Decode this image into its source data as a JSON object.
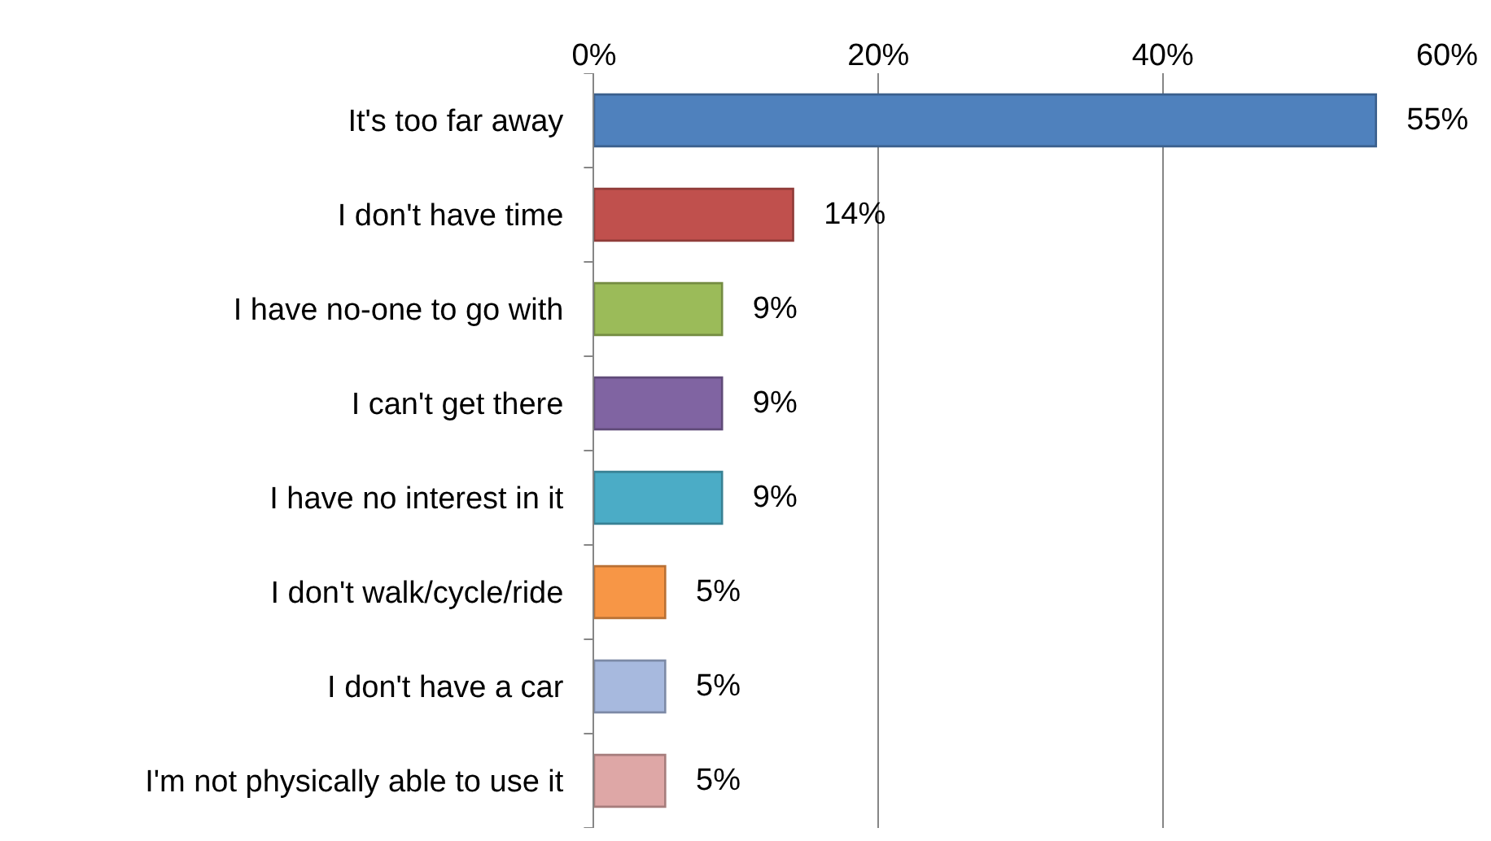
{
  "chart_data": {
    "type": "bar",
    "orientation": "horizontal",
    "categories": [
      "It's too far away",
      "I don't have time",
      "I have no-one to go with",
      "I can't get there",
      "I have no interest in it",
      "I don't walk/cycle/ride",
      "I don't have a car",
      "I'm not physically able to use it"
    ],
    "values": [
      55,
      14,
      9,
      9,
      9,
      5,
      5,
      5
    ],
    "colors": [
      "#4f81bd",
      "#c0504d",
      "#9bbb59",
      "#8064a2",
      "#4bacc6",
      "#f79646",
      "#a7b9de",
      "#dea7a6"
    ],
    "value_labels": [
      "55%",
      "14%",
      "9%",
      "9%",
      "9%",
      "5%",
      "5%",
      "5%"
    ],
    "xlim": [
      0,
      60
    ],
    "xticks": [
      {
        "value": 0,
        "label": "0%"
      },
      {
        "value": 20,
        "label": "20%"
      },
      {
        "value": 40,
        "label": "40%"
      },
      {
        "value": 60,
        "label": "60%"
      }
    ],
    "grid": "x"
  }
}
